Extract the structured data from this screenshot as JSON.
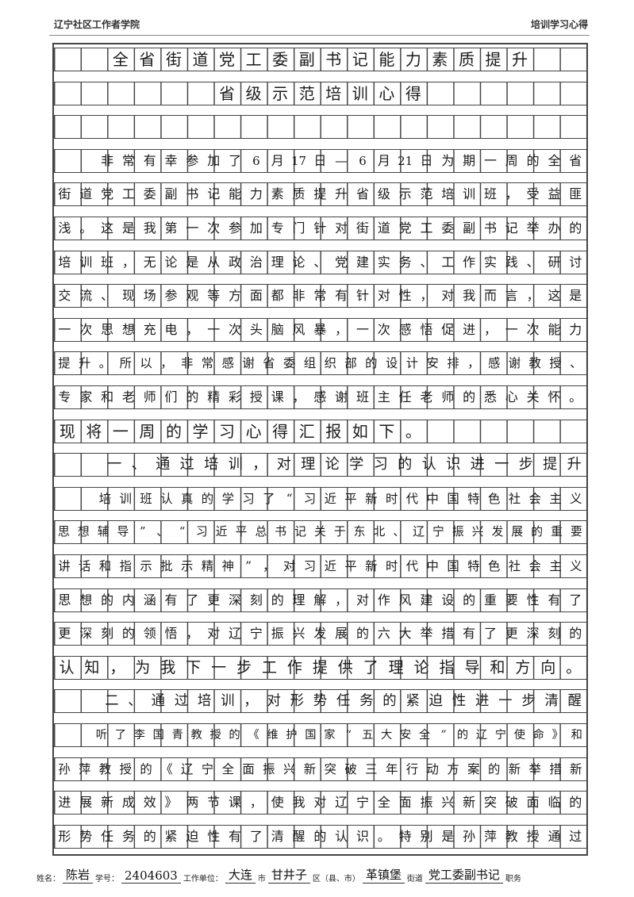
{
  "header": {
    "left": "辽宁社区工作者学院",
    "right": "培训学习心得"
  },
  "rows": [
    "　　全省街道党工委副书记能力素质提升",
    "　　　　　　省级示范培训心得",
    "",
    "　　非常有幸参加了6月17日—6月21日为期一周的全省",
    "街道党工委副书记能力素质提升省级示范培训班，受益匪",
    "浅。这是我第一次参加专门针对街道党工委副书记举办的",
    "培训班，无论是从政治理论、党建实务、工作实践、研讨",
    "交流、现场参观等方面都非常有针对性，对我而言，这是",
    "一次思想充电，一次头脑风暴，一次感悟促进，一次能力",
    "提升。所以，非常感谢省委组织部的设计安排，感谢教授、",
    "专家和老师们的精彩授课，感谢班主任老师的悉心关怀。",
    "现将一周的学习心得汇报如下。",
    "　　一、通过培训，对理论学习的认识进一步提升",
    "　　培训班认真的学习了“习近平新时代中国特色社会主义",
    "思想辅导”、“习近平总书记关于东北、辽宁振兴发展的重要",
    "讲话和指示批示精神”，对习近平新时代中国特色社会主义",
    "思想的内涵有了更深刻的理解，对作风建设的重要性有了",
    "更深刻的领悟，对辽宁振兴发展的六大举措有了更深刻的",
    "认知，为我下一步工作提供了理论指导和方向。",
    "　　二、通过培训，对形势任务的紧迫性进一步清醒",
    "　　听了李国青教授的《维护国家“五大安全”的辽宁使命》和",
    "孙萍教授的《辽宁全面振兴新突破三年行动方案的新举措新",
    "进展新成效》两节课，使我对辽宁全面振兴新突破面临的",
    "形势任务的紧迫性有了清醒的认识。特别是孙萍教授通过"
  ],
  "footer": {
    "name_label": "姓名：",
    "name": "陈岩",
    "id_label": "学号：",
    "id": "2404603",
    "unit_label": "工作单位：",
    "city": "大连",
    "city_suffix": "市",
    "district": "甘井子",
    "district_suffix": "区（县、市）",
    "street": "革镇堡",
    "street_suffix": "街道",
    "position": "党工委副书记",
    "position_label": "职务"
  }
}
